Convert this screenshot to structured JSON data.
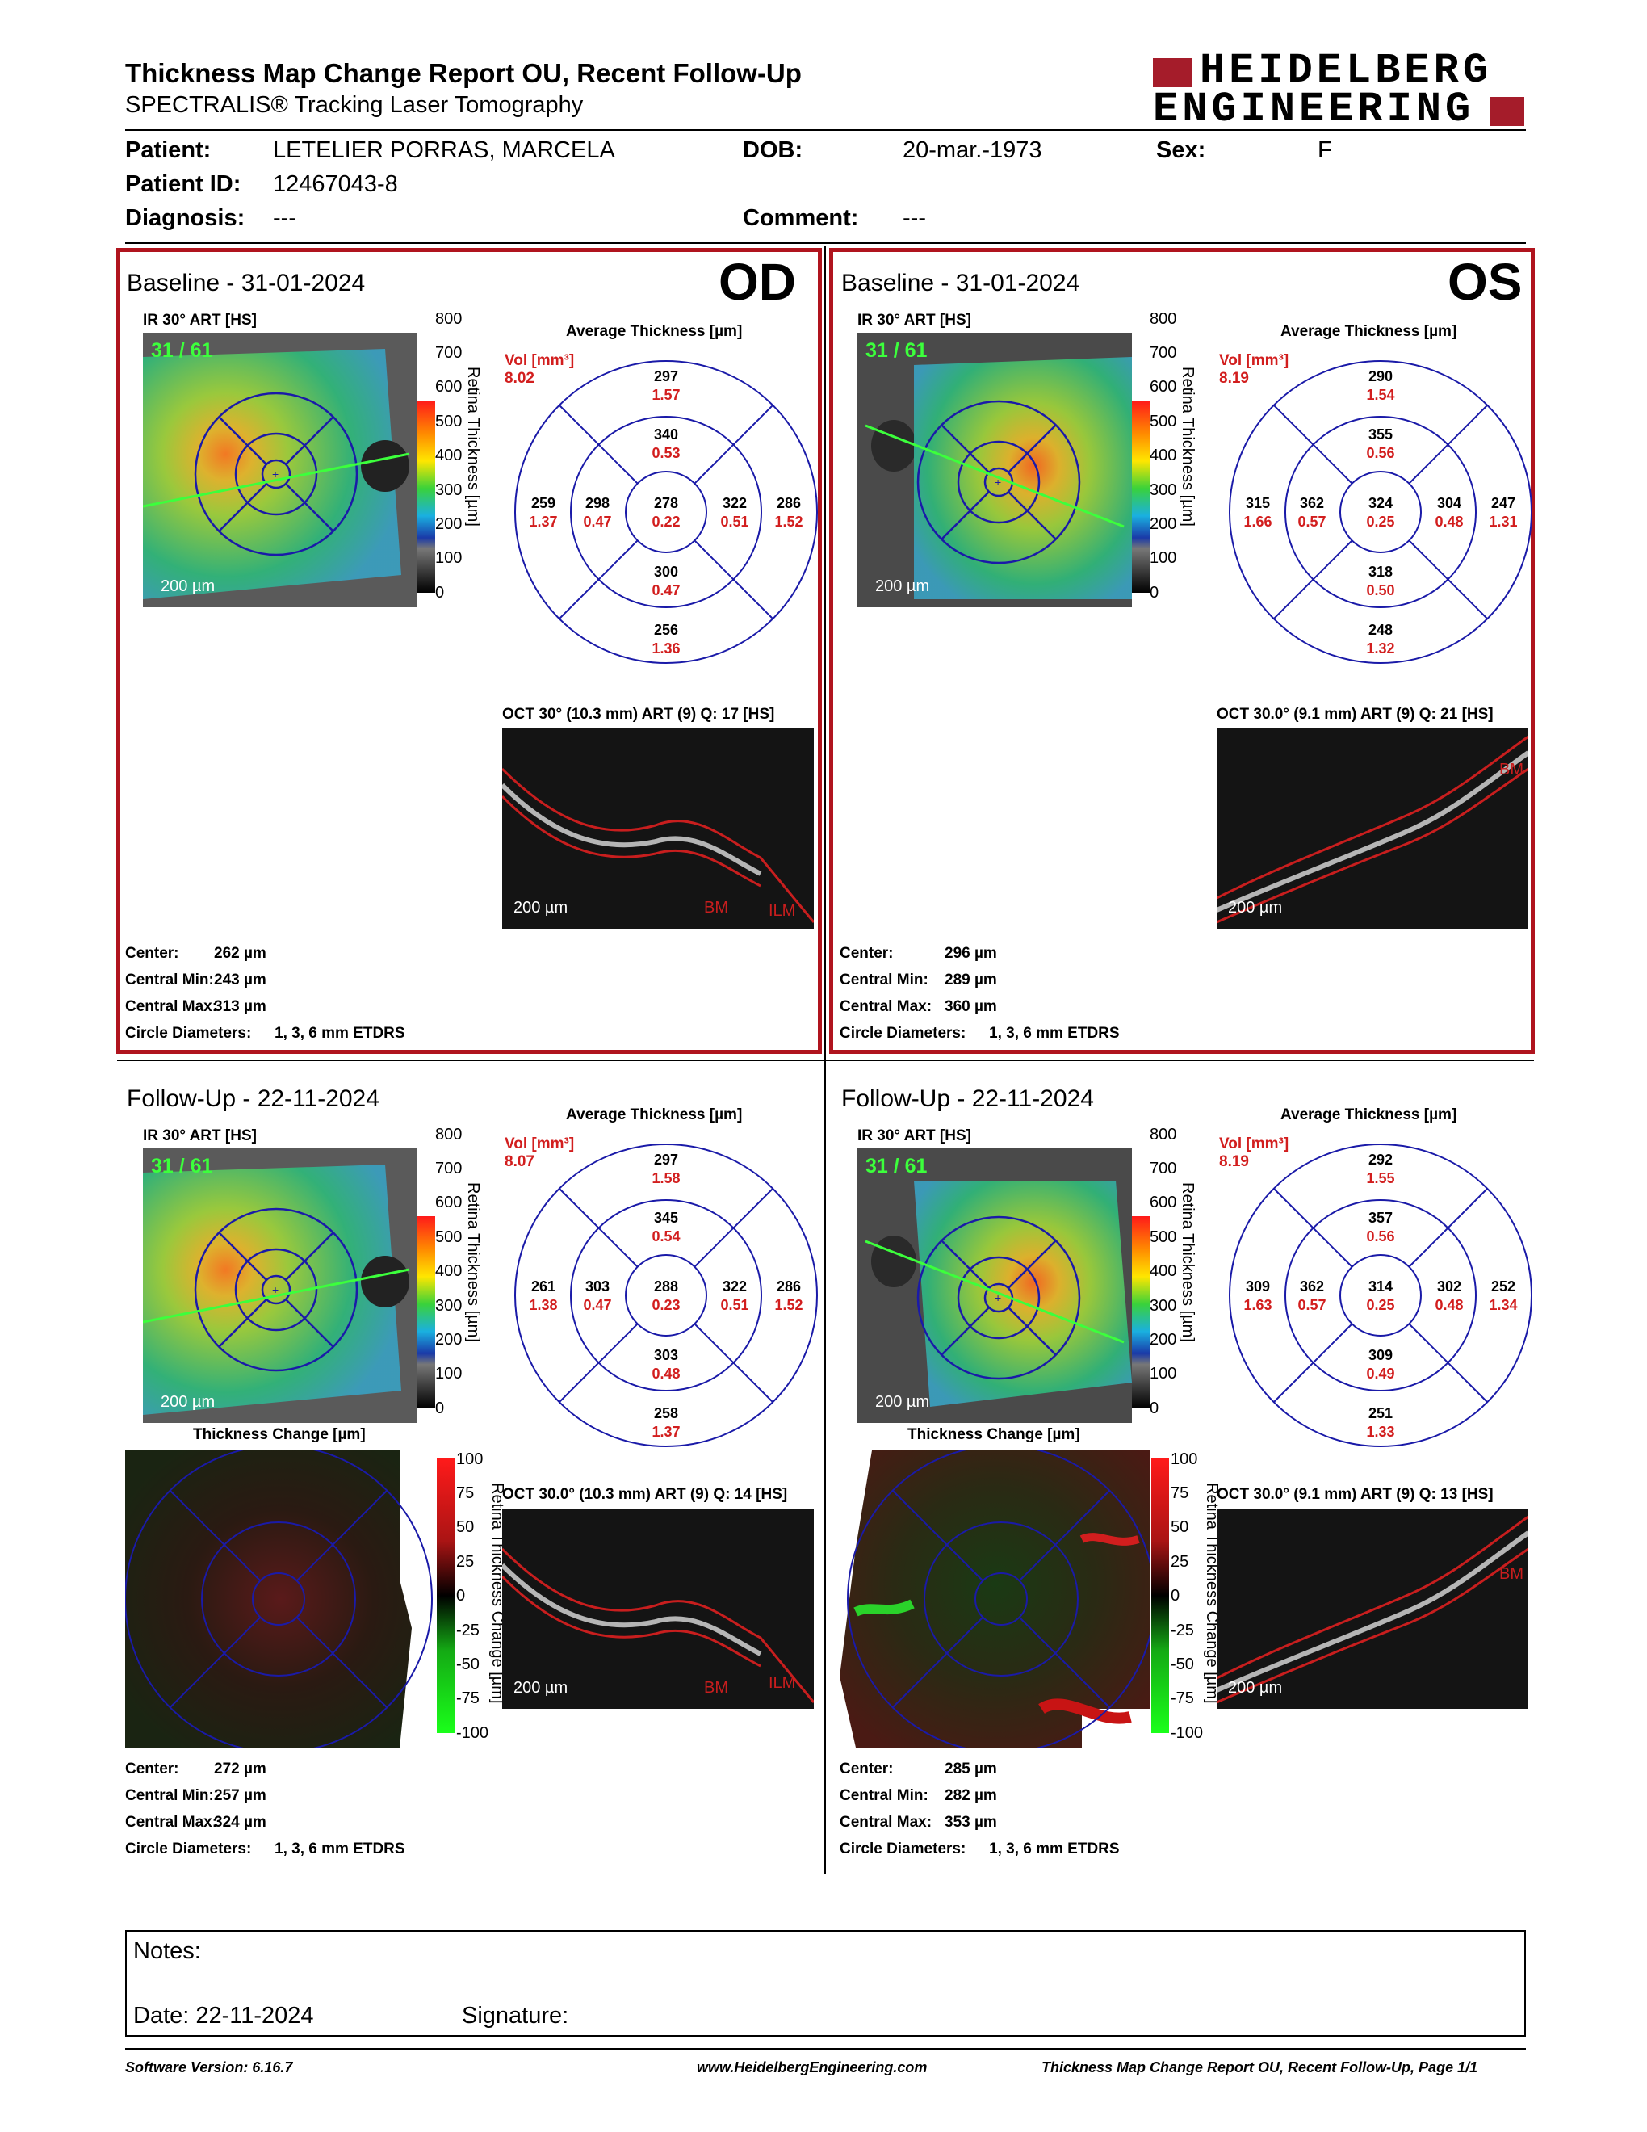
{
  "header": {
    "title": "Thickness Map Change Report OU, Recent Follow-Up",
    "subtitle": "SPECTRALIS® Tracking Laser Tomography",
    "logo_line1": "HEIDELBERG",
    "logo_line2": "ENGINEERING"
  },
  "patient": {
    "patient_label": "Patient:",
    "patient_value": "LETELIER PORRAS, MARCELA",
    "dob_label": "DOB:",
    "dob_value": "20-mar.-1973",
    "sex_label": "Sex:",
    "sex_value": "F",
    "id_label": "Patient ID:",
    "id_value": "12467043-8",
    "diagnosis_label": "Diagnosis:",
    "diagnosis_value": "---",
    "comment_label": "Comment:",
    "comment_value": "---"
  },
  "common": {
    "ir_label": "IR 30° ART [HS]",
    "avg_thickness": "Average Thickness [µm]",
    "vol_label": "Vol [mm³]",
    "thickness_change": "Thickness Change [µm]",
    "retina_thickness_axis": "Retina Thickness [µm]",
    "retina_change_axis": "Retina Thickness Change [µm]",
    "scale_200": "200 µm",
    "bm": "BM",
    "ilm": "ILM",
    "center_label": "Center:",
    "cmin_label": "Central Min:",
    "cmax_label": "Central Max:",
    "circle_label": "Circle Diameters:",
    "circle_value": "1, 3, 6 mm ETDRS",
    "thickness_ticks": [
      "800",
      "700",
      "600",
      "500",
      "400",
      "300",
      "200",
      "100",
      "0"
    ],
    "change_ticks": [
      "100",
      "75",
      "50",
      "25",
      "0",
      "-25",
      "-50",
      "-75",
      "-100"
    ]
  },
  "panels": {
    "od_base": {
      "title": "Baseline - 31-01-2024",
      "eye": "OD",
      "slice": "31 / 61",
      "vol": "8.02",
      "center": [
        "278",
        "0.22"
      ],
      "inner_sup": [
        "340",
        "0.53"
      ],
      "inner_nas": [
        "322",
        "0.51"
      ],
      "inner_inf": [
        "300",
        "0.47"
      ],
      "inner_tem": [
        "298",
        "0.47"
      ],
      "outer_sup": [
        "297",
        "1.57"
      ],
      "outer_nas": [
        "286",
        "1.52"
      ],
      "outer_inf": [
        "256",
        "1.36"
      ],
      "outer_tem": [
        "259",
        "1.37"
      ],
      "oct_label": "OCT 30° (10.3 mm) ART (9) Q: 17 [HS]",
      "stat_center": "262 µm",
      "stat_min": "243 µm",
      "stat_max": "313 µm"
    },
    "os_base": {
      "title": "Baseline - 31-01-2024",
      "eye": "OS",
      "slice": "31 / 61",
      "vol": "8.19",
      "center": [
        "324",
        "0.25"
      ],
      "inner_sup": [
        "355",
        "0.56"
      ],
      "inner_nas": [
        "362",
        "0.57"
      ],
      "inner_inf": [
        "318",
        "0.50"
      ],
      "inner_tem": [
        "304",
        "0.48"
      ],
      "outer_sup": [
        "290",
        "1.54"
      ],
      "outer_nas": [
        "315",
        "1.66"
      ],
      "outer_inf": [
        "248",
        "1.32"
      ],
      "outer_tem": [
        "247",
        "1.31"
      ],
      "oct_label": "OCT 30.0° (9.1 mm) ART (9) Q: 21 [HS]",
      "stat_center": "296 µm",
      "stat_min": "289 µm",
      "stat_max": "360 µm"
    },
    "od_fu": {
      "title": "Follow-Up - 22-11-2024",
      "slice": "31 / 61",
      "vol": "8.07",
      "center": [
        "288",
        "0.23"
      ],
      "inner_sup": [
        "345",
        "0.54"
      ],
      "inner_nas": [
        "322",
        "0.51"
      ],
      "inner_inf": [
        "303",
        "0.48"
      ],
      "inner_tem": [
        "303",
        "0.47"
      ],
      "outer_sup": [
        "297",
        "1.58"
      ],
      "outer_nas": [
        "286",
        "1.52"
      ],
      "outer_inf": [
        "258",
        "1.37"
      ],
      "outer_tem": [
        "261",
        "1.38"
      ],
      "oct_label": "OCT 30.0° (10.3 mm) ART (9) Q: 14 [HS]",
      "stat_center": "272 µm",
      "stat_min": "257 µm",
      "stat_max": "324 µm"
    },
    "os_fu": {
      "title": "Follow-Up - 22-11-2024",
      "slice": "31 / 61",
      "vol": "8.19",
      "center": [
        "314",
        "0.25"
      ],
      "inner_sup": [
        "357",
        "0.56"
      ],
      "inner_nas": [
        "362",
        "0.57"
      ],
      "inner_inf": [
        "309",
        "0.49"
      ],
      "inner_tem": [
        "302",
        "0.48"
      ],
      "outer_sup": [
        "292",
        "1.55"
      ],
      "outer_nas": [
        "309",
        "1.63"
      ],
      "outer_inf": [
        "251",
        "1.33"
      ],
      "outer_tem": [
        "252",
        "1.34"
      ],
      "oct_label": "OCT 30.0° (9.1 mm) ART (9) Q: 13 [HS]",
      "stat_center": "285 µm",
      "stat_min": "282 µm",
      "stat_max": "353 µm"
    }
  },
  "notes": {
    "notes_label": "Notes:",
    "date_label": "Date: 22-11-2024",
    "signature_label": "Signature:"
  },
  "footer": {
    "software": "Software Version: 6.16.7",
    "website": "www.HeidelbergEngineering.com",
    "page": "Thickness Map Change Report OU, Recent Follow-Up, Page 1/1"
  },
  "colors": {
    "frame_red": "#b0141e",
    "etdrs_blue": "#1a1aa8",
    "value_red": "#d21e1e",
    "logo_red": "#a51c2a",
    "slice_green": "#3cff3c"
  }
}
